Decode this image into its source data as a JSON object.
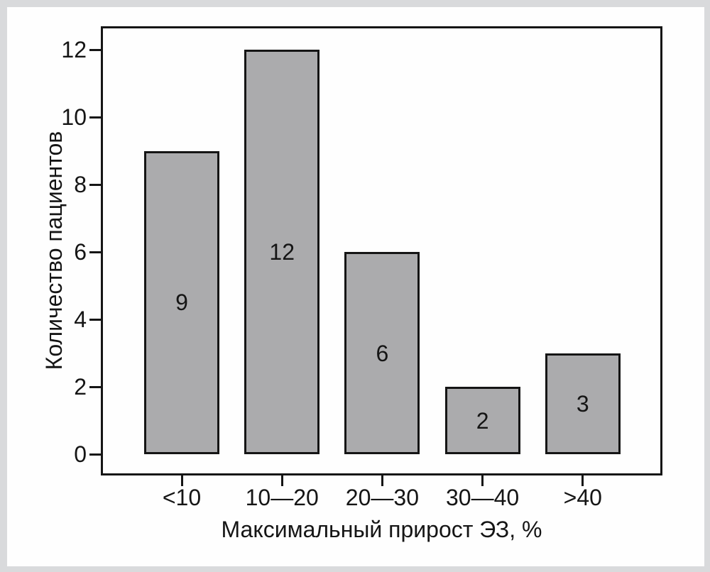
{
  "figure": {
    "outer_background": "#d9dadc",
    "card_background": "#fefefe",
    "ink_color": "#151515"
  },
  "chart_data": {
    "type": "bar",
    "title": "",
    "categories": [
      "<10",
      "10—20",
      "20—30",
      "30—40",
      ">40"
    ],
    "values": [
      9,
      12,
      6,
      2,
      3
    ],
    "value_labels": [
      "9",
      "12",
      "6",
      "2",
      "3"
    ],
    "xlabel": "Максимальный прирост ЭЗ, %",
    "ylabel": "Количество пациентов",
    "y_ticks": [
      0,
      2,
      4,
      6,
      8,
      10,
      12
    ],
    "ylim": [
      0,
      12.7
    ],
    "grid": false,
    "legend_position": "none",
    "bar_color": "#ababad",
    "bar_border_color": "#151515",
    "axis_color": "#151515"
  }
}
